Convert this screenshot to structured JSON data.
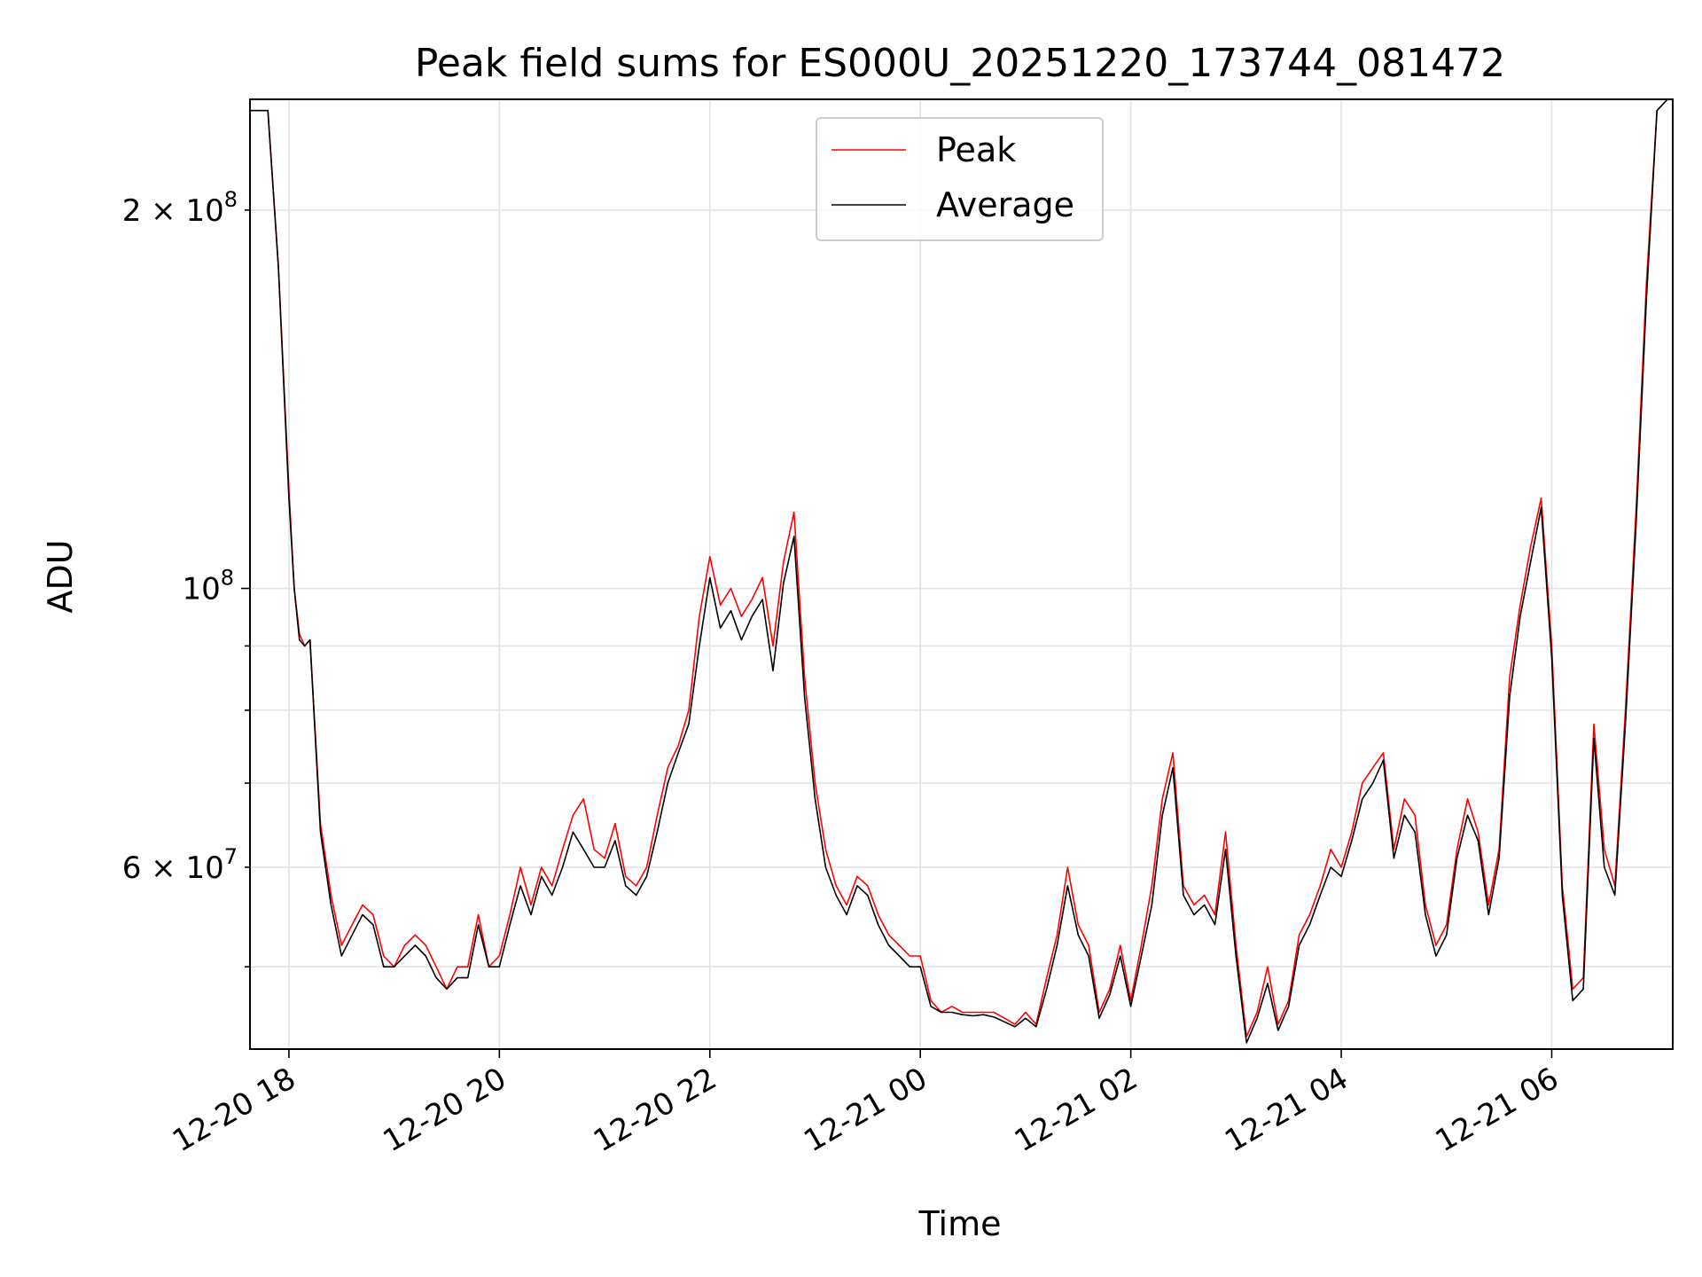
{
  "chart_data": {
    "type": "line",
    "title": "Peak field sums for ES000U_20251220_173744_081472",
    "xlabel": "Time",
    "ylabel": "ADU",
    "yscale": "log",
    "ylim": [
      43000000,
      245000000
    ],
    "xlim_hours": [
      -0.37,
      13.15
    ],
    "grid": true,
    "legend_position": "top-center",
    "x_ticks": [
      {
        "hour": 0,
        "label": "12-20 18"
      },
      {
        "hour": 2,
        "label": "12-20 20"
      },
      {
        "hour": 4,
        "label": "12-20 22"
      },
      {
        "hour": 6,
        "label": "12-21 00"
      },
      {
        "hour": 8,
        "label": "12-21 02"
      },
      {
        "hour": 10,
        "label": "12-21 04"
      },
      {
        "hour": 12,
        "label": "12-21 06"
      }
    ],
    "y_ticks_major": [
      {
        "value": 100000000,
        "base": "10",
        "exp": "8"
      }
    ],
    "y_ticks_minor_labeled": [
      {
        "value": 60000000,
        "mant": "6",
        "exp": "7"
      },
      {
        "value": 200000000,
        "mant": "2",
        "exp": "8"
      }
    ],
    "y_ticks_minor": [
      50000000,
      60000000,
      70000000,
      80000000,
      90000000,
      200000000
    ],
    "times_hours": [
      -0.37,
      -0.2,
      -0.1,
      0.0,
      0.05,
      0.1,
      0.15,
      0.2,
      0.3,
      0.4,
      0.5,
      0.6,
      0.7,
      0.8,
      0.9,
      1.0,
      1.1,
      1.2,
      1.3,
      1.4,
      1.5,
      1.6,
      1.7,
      1.8,
      1.9,
      2.0,
      2.1,
      2.2,
      2.3,
      2.4,
      2.5,
      2.6,
      2.7,
      2.8,
      2.9,
      3.0,
      3.1,
      3.2,
      3.3,
      3.4,
      3.5,
      3.6,
      3.7,
      3.8,
      3.9,
      4.0,
      4.1,
      4.2,
      4.3,
      4.4,
      4.5,
      4.6,
      4.7,
      4.8,
      4.9,
      5.0,
      5.1,
      5.2,
      5.3,
      5.4,
      5.5,
      5.6,
      5.7,
      5.8,
      5.9,
      6.0,
      6.1,
      6.2,
      6.3,
      6.4,
      6.5,
      6.6,
      6.7,
      6.8,
      6.9,
      7.0,
      7.1,
      7.2,
      7.3,
      7.4,
      7.5,
      7.6,
      7.7,
      7.8,
      7.9,
      8.0,
      8.1,
      8.2,
      8.3,
      8.4,
      8.5,
      8.6,
      8.7,
      8.8,
      8.9,
      9.0,
      9.1,
      9.2,
      9.3,
      9.4,
      9.5,
      9.6,
      9.7,
      9.8,
      9.9,
      10.0,
      10.1,
      10.2,
      10.3,
      10.4,
      10.5,
      10.6,
      10.7,
      10.8,
      10.9,
      11.0,
      11.1,
      11.2,
      11.3,
      11.4,
      11.5,
      11.6,
      11.7,
      11.8,
      11.9,
      12.0,
      12.1,
      12.2,
      12.3,
      12.4,
      12.5,
      12.6,
      12.7,
      12.8,
      12.9,
      13.0,
      13.1,
      13.15
    ],
    "series": [
      {
        "name": "Peak",
        "color": "#ff0000",
        "values": [
          240000000,
          240000000,
          180000000,
          120000000,
          100000000,
          92000000,
          90000000,
          91000000,
          65000000,
          57000000,
          52000000,
          54000000,
          56000000,
          55000000,
          51000000,
          50000000,
          52000000,
          53000000,
          52000000,
          50000000,
          48000000,
          50000000,
          50000000,
          55000000,
          50000000,
          51000000,
          55000000,
          60000000,
          56000000,
          60000000,
          58000000,
          62000000,
          66000000,
          68000000,
          62000000,
          61000000,
          65000000,
          59000000,
          58000000,
          60000000,
          66000000,
          72000000,
          75000000,
          80000000,
          95000000,
          106000000,
          97000000,
          100000000,
          95000000,
          98000000,
          102000000,
          90000000,
          105000000,
          115000000,
          85000000,
          70000000,
          62000000,
          58000000,
          56000000,
          59000000,
          58000000,
          55000000,
          53000000,
          52000000,
          51000000,
          51000000,
          47000000,
          46000000,
          46500000,
          46000000,
          46000000,
          46000000,
          46000000,
          45500000,
          45000000,
          46000000,
          45000000,
          49000000,
          53000000,
          60000000,
          54000000,
          52000000,
          46000000,
          48000000,
          52000000,
          47000000,
          52000000,
          58000000,
          68000000,
          74000000,
          58000000,
          56000000,
          57000000,
          55000000,
          64000000,
          52000000,
          44000000,
          46000000,
          50000000,
          45000000,
          47000000,
          53000000,
          55000000,
          58000000,
          62000000,
          60000000,
          64000000,
          70000000,
          72000000,
          74000000,
          62000000,
          68000000,
          66000000,
          56000000,
          52000000,
          54000000,
          62000000,
          68000000,
          64000000,
          56000000,
          62000000,
          85000000,
          97000000,
          108000000,
          118000000,
          90000000,
          58000000,
          48000000,
          49000000,
          78000000,
          62000000,
          58000000,
          80000000,
          115000000,
          175000000,
          240000000,
          245000000
        ]
      },
      {
        "name": "Average",
        "color": "#000000",
        "values": [
          240000000,
          240000000,
          180000000,
          118000000,
          100000000,
          91000000,
          90000000,
          91000000,
          64000000,
          56000000,
          51000000,
          53000000,
          55000000,
          54000000,
          50000000,
          50000000,
          51000000,
          52000000,
          51000000,
          49000000,
          48000000,
          49000000,
          49000000,
          54000000,
          50000000,
          50000000,
          54000000,
          58000000,
          55000000,
          59000000,
          57000000,
          60000000,
          64000000,
          62000000,
          60000000,
          60000000,
          63000000,
          58000000,
          57000000,
          59000000,
          64000000,
          70000000,
          74000000,
          78000000,
          90000000,
          102000000,
          93000000,
          96000000,
          91000000,
          95000000,
          98000000,
          86000000,
          101000000,
          110000000,
          82000000,
          68000000,
          60000000,
          57000000,
          55000000,
          58000000,
          57000000,
          54000000,
          52000000,
          51000000,
          50000000,
          50000000,
          46500000,
          46000000,
          46000000,
          45800000,
          45700000,
          45800000,
          45600000,
          45200000,
          44800000,
          45500000,
          44800000,
          48000000,
          52000000,
          58000000,
          53000000,
          51000000,
          45500000,
          47500000,
          51000000,
          46500000,
          51000000,
          56000000,
          66000000,
          72000000,
          57000000,
          55000000,
          56000000,
          54000000,
          62000000,
          51000000,
          43500000,
          45500000,
          48500000,
          44500000,
          46500000,
          52000000,
          54000000,
          57000000,
          60000000,
          59000000,
          63000000,
          68000000,
          70000000,
          73000000,
          61000000,
          66000000,
          64000000,
          55000000,
          51000000,
          53000000,
          61000000,
          66000000,
          63000000,
          55000000,
          61000000,
          82000000,
          95000000,
          105000000,
          116000000,
          88000000,
          57000000,
          47000000,
          48000000,
          76000000,
          60000000,
          57000000,
          78000000,
          112000000,
          170000000,
          240000000,
          245000000
        ]
      }
    ]
  }
}
